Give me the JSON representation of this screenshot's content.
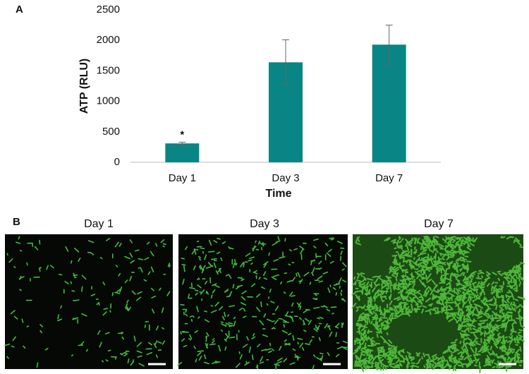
{
  "panel_labels": [
    "A",
    "B"
  ],
  "chart_data": {
    "type": "bar",
    "y_label": "ATP (RLU)",
    "x_label": "Time",
    "categories": [
      "Day 1",
      "Day 3",
      "Day 7"
    ],
    "values": [
      310,
      1640,
      1930
    ],
    "errors": [
      20,
      370,
      320
    ],
    "color": "#0a8585",
    "ylim": [
      0,
      2500
    ],
    "yticks": [
      0,
      500,
      1000,
      1500,
      2000,
      2500
    ],
    "grid": false,
    "annotations": [
      {
        "text": "*",
        "x": "Day 1"
      }
    ]
  },
  "images": [
    {
      "title": "Day 1"
    },
    {
      "title": "Day 3"
    },
    {
      "title": "Day 7"
    }
  ]
}
